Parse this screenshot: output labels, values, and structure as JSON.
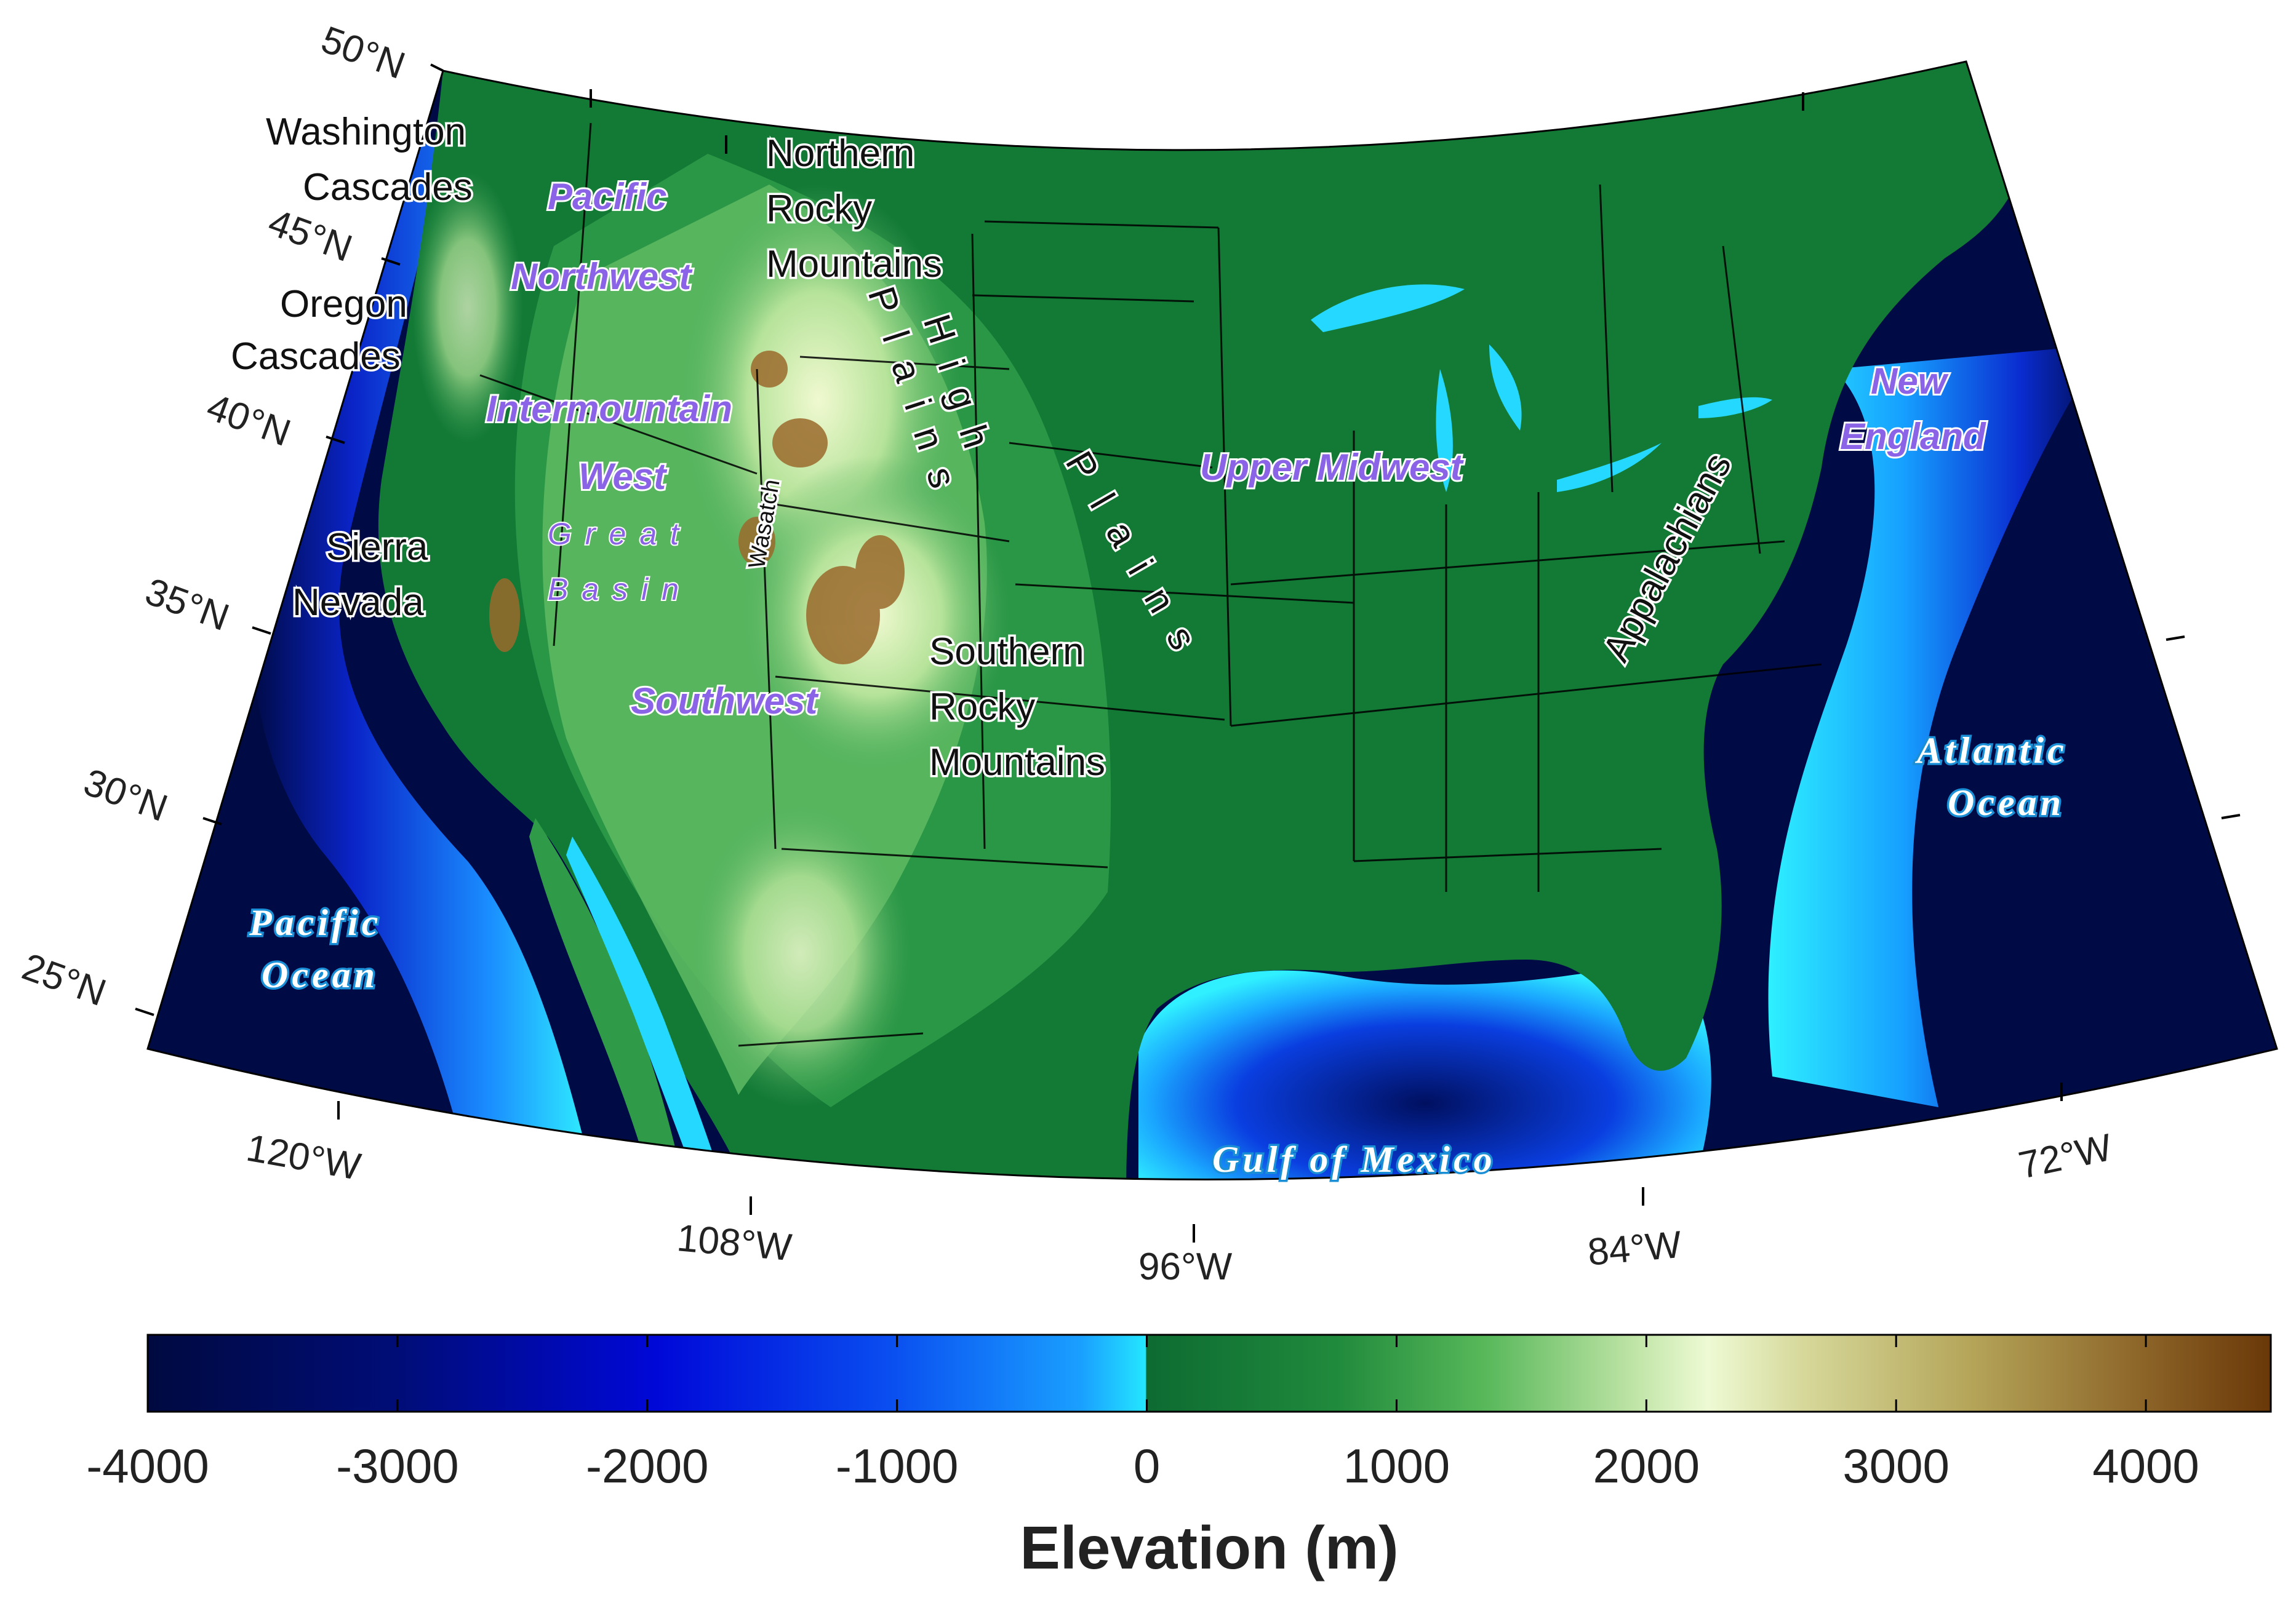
{
  "map": {
    "lat_labels": [
      "50°N",
      "45°N",
      "40°N",
      "35°N",
      "30°N",
      "25°N"
    ],
    "lon_labels": [
      "120°W",
      "108°W",
      "96°W",
      "84°W",
      "72°W"
    ],
    "regions": {
      "pacific": "Pacific",
      "northwest": "Northwest",
      "intermountain": "Intermountain",
      "west": "West",
      "great": "Great",
      "basin": "Basin",
      "southwest": "Southwest",
      "upper_midwest": "Upper Midwest",
      "new": "New",
      "england": "England"
    },
    "features": {
      "washington": "Washington",
      "cascades1": "Cascades",
      "oregon": "Oregon",
      "cascades2": "Cascades",
      "sierra": "Sierra",
      "nevada": "Nevada",
      "wasatch": "Wasatch",
      "northern": "Northern",
      "rocky1": "Rocky",
      "mountains1": "Mountains",
      "southern": "Southern",
      "rocky2": "Rocky",
      "mountains2": "Mountains",
      "high": "High",
      "plains_a": "Plains",
      "plains_b": "Plains",
      "appalachians": "Appalachians"
    },
    "oceans": {
      "pacific_1": "Pacific",
      "pacific_2": "Ocean",
      "atlantic_1": "Atlantic",
      "atlantic_2": "Ocean",
      "gulf": "Gulf of Mexico"
    },
    "colors": {
      "deep_ocean": "#000a45",
      "mid_ocean": "#0a2bd8",
      "shallow_ocean": "#27f0ff",
      "lowland": "#107a35",
      "plains": "#36a851",
      "highland": "#e8f5c0",
      "peaks": "#8b5a1c"
    }
  },
  "colorbar": {
    "label": "Elevation (m)",
    "ticks": [
      "-4000",
      "-3000",
      "-2000",
      "-1000",
      "0",
      "1000",
      "2000",
      "3000",
      "4000"
    ],
    "tick_values": [
      -4000,
      -3000,
      -2000,
      -1000,
      0,
      1000,
      2000,
      3000,
      4000
    ],
    "min": -4000,
    "max": 4500
  }
}
